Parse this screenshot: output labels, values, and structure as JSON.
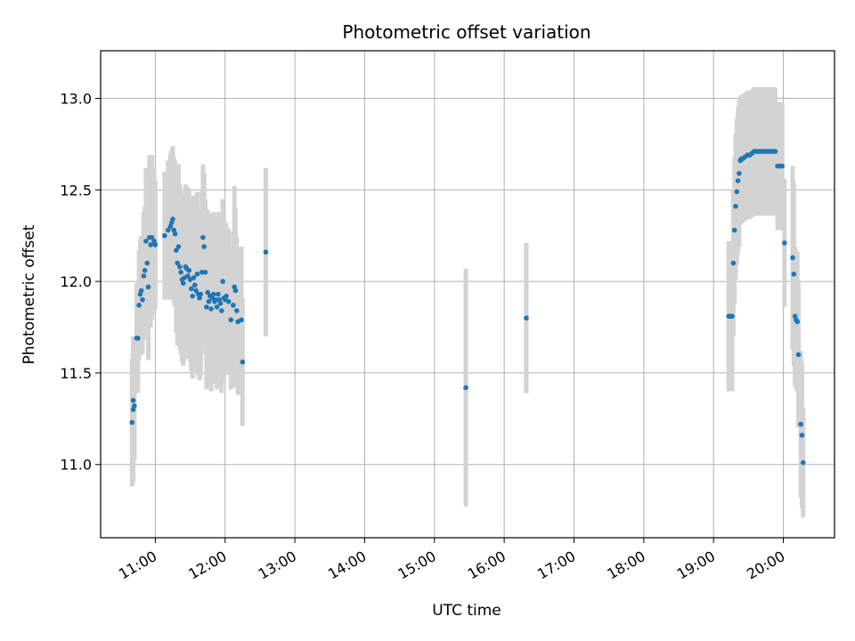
{
  "chart_data": {
    "type": "scatter",
    "title": "Photometric offset variation",
    "xlabel": "UTC time",
    "ylabel": "Photometric offset",
    "xlim": [
      "10:13",
      "20:44"
    ],
    "ylim": [
      10.6,
      13.26
    ],
    "x_ticks": [
      "11:00",
      "12:00",
      "13:00",
      "14:00",
      "15:00",
      "16:00",
      "17:00",
      "18:00",
      "19:00",
      "20:00"
    ],
    "y_ticks": [
      11.0,
      11.5,
      12.0,
      12.5,
      13.0
    ],
    "grid": true,
    "colors": {
      "point": "#1f77b4",
      "errorbar": "#d3d3d3",
      "grid": "#b0b0b0"
    },
    "series": [
      {
        "points": [
          {
            "t": "10:40",
            "y": 11.23,
            "err": 0.35
          },
          {
            "t": "10:41",
            "y": 11.3,
            "err": 0.4
          },
          {
            "t": "10:41",
            "y": 11.35,
            "err": 0.32
          },
          {
            "t": "10:42",
            "y": 11.32,
            "err": 0.3
          },
          {
            "t": "10:44",
            "y": 11.69,
            "err": 0.3
          },
          {
            "t": "10:45",
            "y": 11.69,
            "err": 0.3
          },
          {
            "t": "10:46",
            "y": 11.87,
            "err": 0.3
          },
          {
            "t": "10:47",
            "y": 11.93,
            "err": 0.3
          },
          {
            "t": "10:48",
            "y": 11.95,
            "err": 0.3
          },
          {
            "t": "10:49",
            "y": 11.9,
            "err": 0.3
          },
          {
            "t": "10:50",
            "y": 12.03,
            "err": 0.35
          },
          {
            "t": "10:51",
            "y": 12.06,
            "err": 0.35
          },
          {
            "t": "10:52",
            "y": 12.22,
            "err": 0.4
          },
          {
            "t": "10:53",
            "y": 12.1,
            "err": 0.4
          },
          {
            "t": "10:54",
            "y": 11.97,
            "err": 0.4
          },
          {
            "t": "10:55",
            "y": 12.24,
            "err": 0.45
          },
          {
            "t": "10:56",
            "y": 12.2,
            "err": 0.45
          },
          {
            "t": "10:57",
            "y": 12.24,
            "err": 0.45
          },
          {
            "t": "10:59",
            "y": 12.22,
            "err": 0.4
          },
          {
            "t": "11:00",
            "y": 12.2,
            "err": 0.35
          },
          {
            "t": "11:08",
            "y": 12.25,
            "err": 0.35
          },
          {
            "t": "11:11",
            "y": 12.28,
            "err": 0.38
          },
          {
            "t": "11:13",
            "y": 12.3,
            "err": 0.4
          },
          {
            "t": "11:14",
            "y": 12.32,
            "err": 0.4
          },
          {
            "t": "11:15",
            "y": 12.34,
            "err": 0.4
          },
          {
            "t": "11:16",
            "y": 12.28,
            "err": 0.4
          },
          {
            "t": "11:17",
            "y": 12.26,
            "err": 0.4
          },
          {
            "t": "11:18",
            "y": 12.17,
            "err": 0.45
          },
          {
            "t": "11:19",
            "y": 12.1,
            "err": 0.45
          },
          {
            "t": "11:20",
            "y": 12.19,
            "err": 0.45
          },
          {
            "t": "11:21",
            "y": 12.08,
            "err": 0.45
          },
          {
            "t": "11:22",
            "y": 12.05,
            "err": 0.45
          },
          {
            "t": "11:23",
            "y": 12.01,
            "err": 0.45
          },
          {
            "t": "11:24",
            "y": 11.99,
            "err": 0.45
          },
          {
            "t": "11:25",
            "y": 12.02,
            "err": 0.45
          },
          {
            "t": "11:26",
            "y": 12.08,
            "err": 0.45
          },
          {
            "t": "11:27",
            "y": 12.07,
            "err": 0.45
          },
          {
            "t": "11:28",
            "y": 12.03,
            "err": 0.45
          },
          {
            "t": "11:29",
            "y": 12.06,
            "err": 0.45
          },
          {
            "t": "11:30",
            "y": 12.01,
            "err": 0.45
          },
          {
            "t": "11:31",
            "y": 11.96,
            "err": 0.45
          },
          {
            "t": "11:32",
            "y": 11.92,
            "err": 0.45
          },
          {
            "t": "11:33",
            "y": 12.02,
            "err": 0.45
          },
          {
            "t": "11:34",
            "y": 11.98,
            "err": 0.45
          },
          {
            "t": "11:35",
            "y": 11.95,
            "err": 0.45
          },
          {
            "t": "11:36",
            "y": 12.04,
            "err": 0.45
          },
          {
            "t": "11:37",
            "y": 11.93,
            "err": 0.45
          },
          {
            "t": "11:38",
            "y": 11.91,
            "err": 0.45
          },
          {
            "t": "11:39",
            "y": 11.93,
            "err": 0.45
          },
          {
            "t": "11:40",
            "y": 12.05,
            "err": 0.45
          },
          {
            "t": "11:41",
            "y": 12.24,
            "err": 0.4
          },
          {
            "t": "11:42",
            "y": 12.19,
            "err": 0.4
          },
          {
            "t": "11:43",
            "y": 12.05,
            "err": 0.4
          },
          {
            "t": "11:44",
            "y": 11.86,
            "err": 0.45
          },
          {
            "t": "11:45",
            "y": 11.94,
            "err": 0.45
          },
          {
            "t": "11:46",
            "y": 11.89,
            "err": 0.45
          },
          {
            "t": "11:47",
            "y": 11.92,
            "err": 0.45
          },
          {
            "t": "11:48",
            "y": 11.85,
            "err": 0.45
          },
          {
            "t": "11:49",
            "y": 11.91,
            "err": 0.45
          },
          {
            "t": "11:50",
            "y": 11.93,
            "err": 0.45
          },
          {
            "t": "11:51",
            "y": 11.89,
            "err": 0.45
          },
          {
            "t": "11:52",
            "y": 11.9,
            "err": 0.45
          },
          {
            "t": "11:53",
            "y": 11.86,
            "err": 0.45
          },
          {
            "t": "11:54",
            "y": 11.93,
            "err": 0.45
          },
          {
            "t": "11:55",
            "y": 11.9,
            "err": 0.45
          },
          {
            "t": "11:56",
            "y": 11.88,
            "err": 0.45
          },
          {
            "t": "11:57",
            "y": 11.84,
            "err": 0.45
          },
          {
            "t": "11:58",
            "y": 12.0,
            "err": 0.45
          },
          {
            "t": "11:59",
            "y": 11.91,
            "err": 0.45
          },
          {
            "t": "12:00",
            "y": 11.9,
            "err": 0.4
          },
          {
            "t": "12:01",
            "y": 11.92,
            "err": 0.4
          },
          {
            "t": "12:03",
            "y": 11.89,
            "err": 0.4
          },
          {
            "t": "12:05",
            "y": 11.79,
            "err": 0.38
          },
          {
            "t": "12:07",
            "y": 11.87,
            "err": 0.4
          },
          {
            "t": "12:08",
            "y": 11.97,
            "err": 0.55
          },
          {
            "t": "12:09",
            "y": 11.95,
            "err": 0.45
          },
          {
            "t": "12:10",
            "y": 11.84,
            "err": 0.4
          },
          {
            "t": "12:11",
            "y": 11.78,
            "err": 0.4
          },
          {
            "t": "12:14",
            "y": 11.79,
            "err": 0.4
          },
          {
            "t": "12:15",
            "y": 11.56,
            "err": 0.35
          },
          {
            "t": "12:35",
            "y": 12.16,
            "err": 0.46
          },
          {
            "t": "15:27",
            "y": 11.42,
            "err": 0.65
          },
          {
            "t": "16:19",
            "y": 11.8,
            "err": 0.41
          },
          {
            "t": "19:13",
            "y": 11.81,
            "err": 0.41
          },
          {
            "t": "19:14",
            "y": 11.81,
            "err": 0.41
          },
          {
            "t": "19:15",
            "y": 11.81,
            "err": 0.41
          },
          {
            "t": "19:16",
            "y": 11.81,
            "err": 0.41
          },
          {
            "t": "19:17",
            "y": 12.1,
            "err": 0.4
          },
          {
            "t": "19:18",
            "y": 12.28,
            "err": 0.4
          },
          {
            "t": "19:19",
            "y": 12.41,
            "err": 0.4
          },
          {
            "t": "19:20",
            "y": 12.49,
            "err": 0.4
          },
          {
            "t": "19:21",
            "y": 12.55,
            "err": 0.4
          },
          {
            "t": "19:22",
            "y": 12.59,
            "err": 0.4
          },
          {
            "t": "19:23",
            "y": 12.66,
            "err": 0.35
          },
          {
            "t": "19:24",
            "y": 12.67,
            "err": 0.35
          },
          {
            "t": "19:25",
            "y": 12.67,
            "err": 0.35
          },
          {
            "t": "19:27",
            "y": 12.68,
            "err": 0.35
          },
          {
            "t": "19:29",
            "y": 12.69,
            "err": 0.35
          },
          {
            "t": "19:31",
            "y": 12.69,
            "err": 0.35
          },
          {
            "t": "19:33",
            "y": 12.7,
            "err": 0.35
          },
          {
            "t": "19:35",
            "y": 12.71,
            "err": 0.35
          },
          {
            "t": "19:37",
            "y": 12.71,
            "err": 0.35
          },
          {
            "t": "19:39",
            "y": 12.71,
            "err": 0.35
          },
          {
            "t": "19:41",
            "y": 12.71,
            "err": 0.35
          },
          {
            "t": "19:43",
            "y": 12.71,
            "err": 0.35
          },
          {
            "t": "19:45",
            "y": 12.71,
            "err": 0.35
          },
          {
            "t": "19:47",
            "y": 12.71,
            "err": 0.35
          },
          {
            "t": "19:49",
            "y": 12.71,
            "err": 0.35
          },
          {
            "t": "19:51",
            "y": 12.71,
            "err": 0.35
          },
          {
            "t": "19:53",
            "y": 12.71,
            "err": 0.35
          },
          {
            "t": "19:55",
            "y": 12.63,
            "err": 0.35
          },
          {
            "t": "19:57",
            "y": 12.63,
            "err": 0.35
          },
          {
            "t": "19:59",
            "y": 12.63,
            "err": 0.35
          },
          {
            "t": "20:01",
            "y": 12.21,
            "err": 0.35
          },
          {
            "t": "20:08",
            "y": 12.13,
            "err": 0.5
          },
          {
            "t": "20:09",
            "y": 12.04,
            "err": 0.5
          },
          {
            "t": "20:10",
            "y": 11.81,
            "err": 0.38
          },
          {
            "t": "20:11",
            "y": 11.79,
            "err": 0.38
          },
          {
            "t": "20:12",
            "y": 11.78,
            "err": 0.38
          },
          {
            "t": "20:13",
            "y": 11.6,
            "err": 0.4
          },
          {
            "t": "20:15",
            "y": 11.22,
            "err": 0.4
          },
          {
            "t": "20:16",
            "y": 11.16,
            "err": 0.4
          },
          {
            "t": "20:17",
            "y": 11.01,
            "err": 0.3
          }
        ]
      }
    ]
  }
}
